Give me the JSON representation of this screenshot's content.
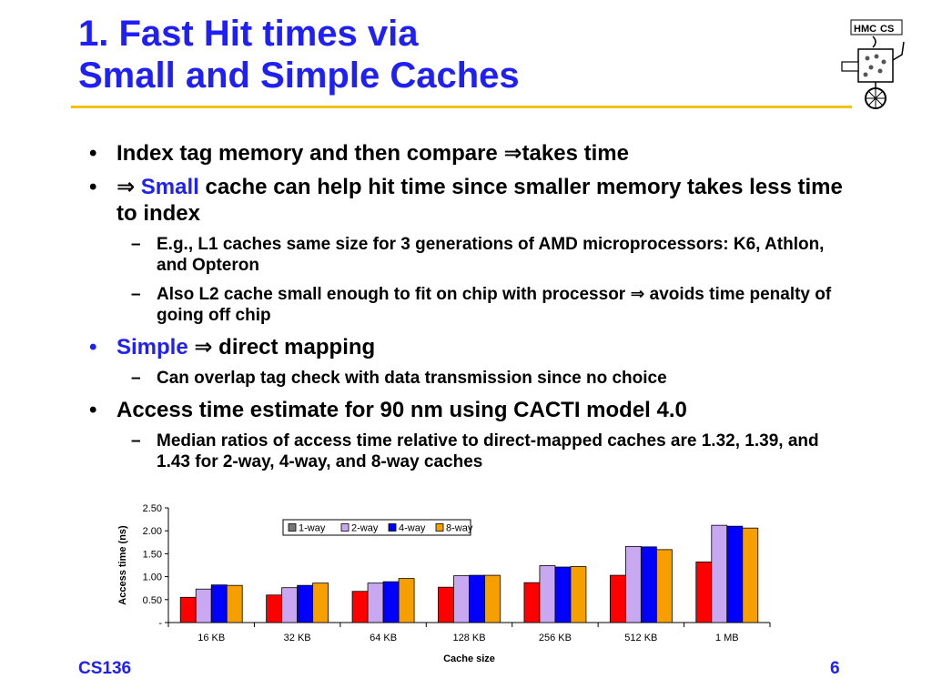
{
  "slide": {
    "title_line1": "1. Fast Hit times via",
    "title_line2": "Small and Simple Caches",
    "footer_left": "CS136",
    "page_number": "6",
    "logo": {
      "text": "HMC CS",
      "icon": "hmc-cs-robot-logo"
    }
  },
  "bullets": {
    "marker": "•",
    "dash": "–",
    "b1": {
      "text_a": "Index tag memory and then compare ",
      "arrow": "⇒",
      "text_b": "takes time"
    },
    "b2": {
      "arrow": "⇒ ",
      "highlight": "Small",
      "text": " cache can help hit time since smaller memory takes less time to index"
    },
    "b2_sub1": "E.g., L1 caches same size for 3 generations of AMD microprocessors: K6, Athlon, and Opteron",
    "b2_sub2": {
      "text_a": "Also L2 cache small enough to fit on chip with processor ",
      "arrow": "⇒",
      "text_b": " avoids time penalty of going off chip"
    },
    "b3": {
      "highlight": "Simple",
      "arrow": " ⇒ ",
      "text": "direct mapping"
    },
    "b3_sub1": "Can overlap tag check with data transmission since no choice",
    "b4": "Access time estimate for 90 nm using CACTI model 4.0",
    "b4_sub1": "Median ratios of access time relative to direct-mapped caches are 1.32, 1.39, and 1.43 for 2-way, 4-way, and 8-way caches"
  },
  "colors": {
    "title": "#1f1ffa",
    "rule": "#f2c200"
  },
  "chart_data": {
    "type": "bar",
    "xlabel": "Cache size",
    "ylabel": "Access time (ns)",
    "ylim": [
      0,
      2.5
    ],
    "yticks": [
      "-",
      "0.50",
      "1.00",
      "1.50",
      "2.00",
      "2.50"
    ],
    "categories": [
      "16 KB",
      "32 KB",
      "64 KB",
      "128 KB",
      "256 KB",
      "512 KB",
      "1 MB"
    ],
    "legend_position": "top-center",
    "series": [
      {
        "name": "1-way",
        "color": "#ff0000",
        "values": [
          0.55,
          0.6,
          0.68,
          0.77,
          0.87,
          1.03,
          1.32
        ]
      },
      {
        "name": "2-way",
        "color": "#c8a8f0",
        "values": [
          0.73,
          0.76,
          0.86,
          1.02,
          1.24,
          1.66,
          2.12
        ]
      },
      {
        "name": "4-way",
        "color": "#0000ff",
        "values": [
          0.82,
          0.81,
          0.89,
          1.03,
          1.21,
          1.65,
          2.1
        ]
      },
      {
        "name": "8-way",
        "color": "#f5a000",
        "values": [
          0.81,
          0.86,
          0.96,
          1.03,
          1.22,
          1.59,
          2.06
        ]
      }
    ]
  }
}
